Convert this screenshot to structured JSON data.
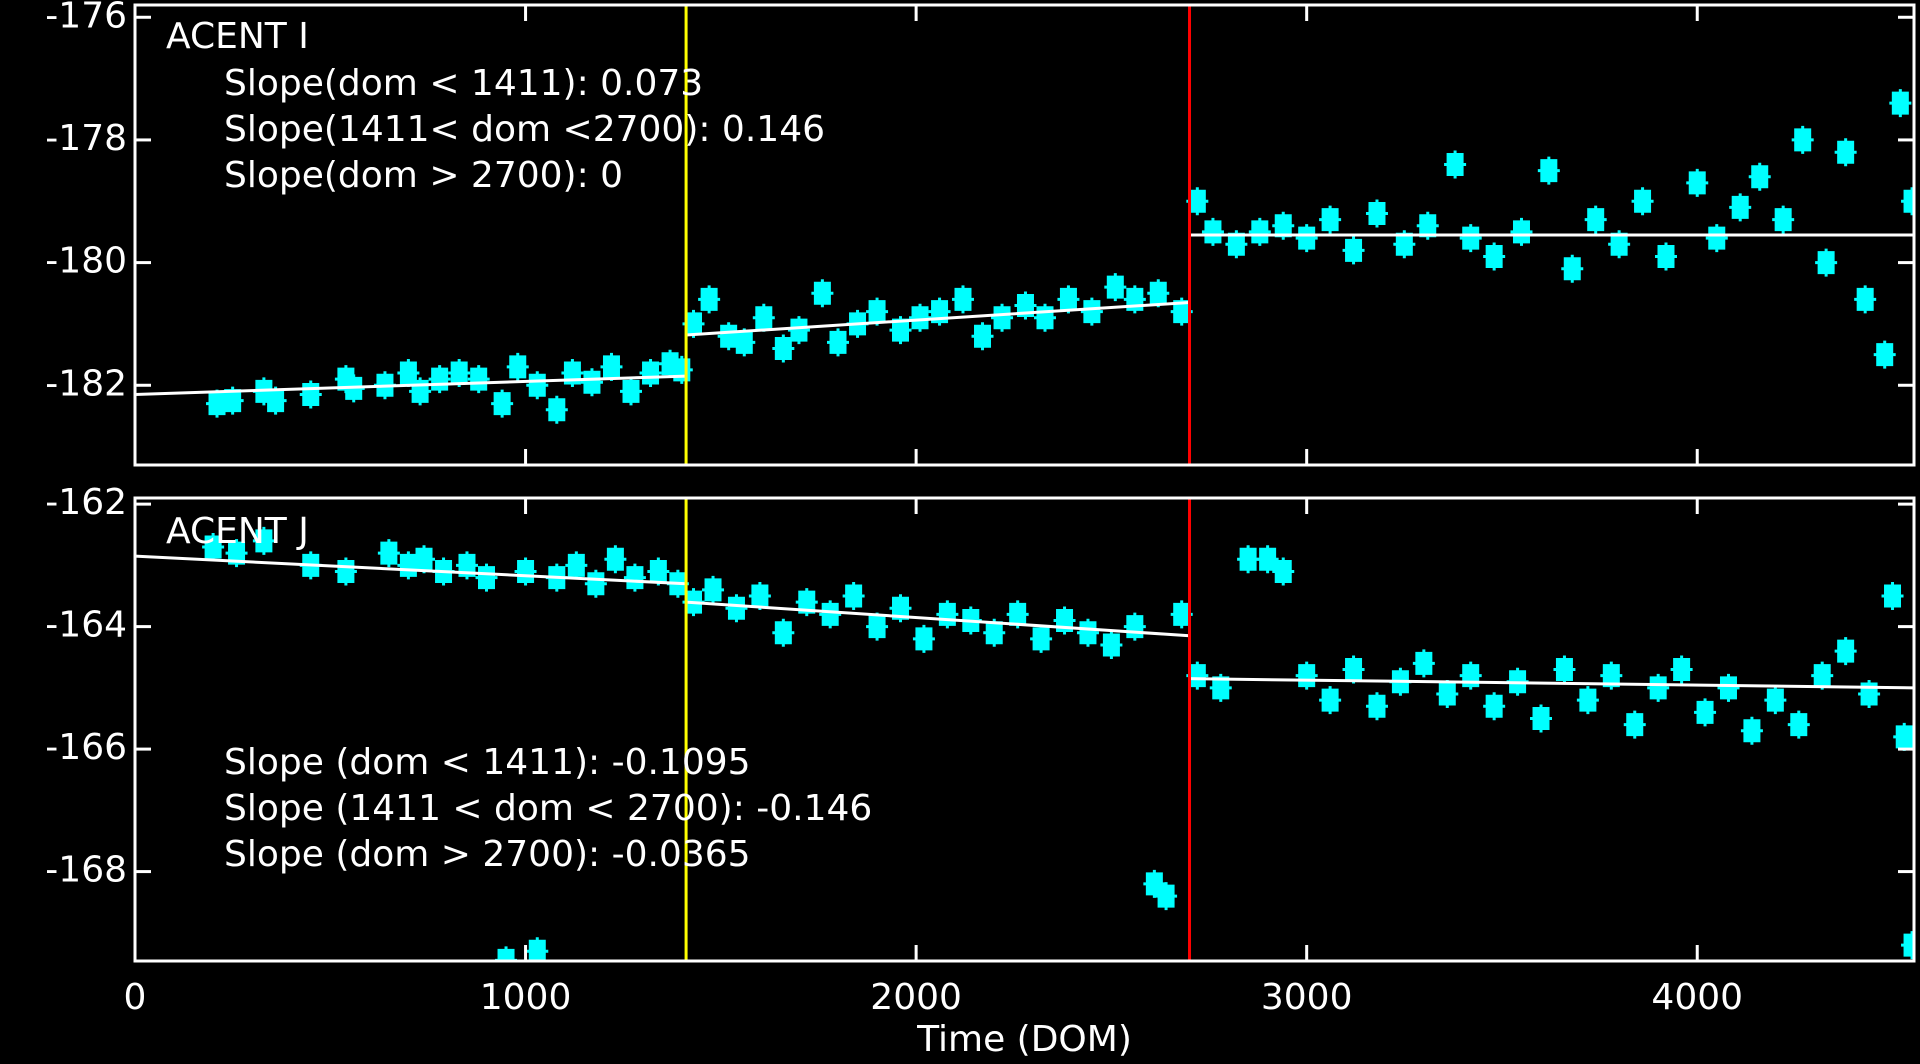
{
  "chart_data": [
    {
      "type": "scatter",
      "annotations": [
        "ACENT I",
        "Slope(dom < 1411): 0.073",
        "Slope(1411< dom <2700): 0.146",
        "Slope(dom > 2700): 0"
      ],
      "xlim": [
        0,
        4555
      ],
      "xticks": [
        0,
        1000,
        2000,
        3000,
        4000
      ],
      "show_xticklabels": false,
      "ylim": [
        -183.3,
        -175.8
      ],
      "yticks": [
        -182,
        -180,
        -178,
        -176
      ],
      "points": {
        "color": "#00ffff",
        "x": [
          210,
          250,
          330,
          360,
          450,
          540,
          560,
          640,
          700,
          730,
          780,
          830,
          880,
          940,
          980,
          1030,
          1080,
          1120,
          1170,
          1220,
          1270,
          1320,
          1370,
          1400,
          1430,
          1470,
          1520,
          1560,
          1610,
          1660,
          1700,
          1760,
          1800,
          1850,
          1900,
          1960,
          2010,
          2060,
          2120,
          2170,
          2220,
          2280,
          2330,
          2390,
          2450,
          2510,
          2560,
          2620,
          2680,
          2720,
          2760,
          2820,
          2880,
          2940,
          3000,
          3060,
          3120,
          3180,
          3250,
          3310,
          3380,
          3420,
          3480,
          3550,
          3620,
          3680,
          3740,
          3800,
          3860,
          3920,
          4000,
          4050,
          4110,
          4160,
          4220,
          4270,
          4330,
          4380,
          4430,
          4480,
          4520,
          4550
        ],
        "y": [
          -182.3,
          -182.25,
          -182.1,
          -182.25,
          -182.15,
          -181.9,
          -182.05,
          -182.0,
          -181.8,
          -182.1,
          -181.9,
          -181.8,
          -181.9,
          -182.3,
          -181.7,
          -182.0,
          -182.4,
          -181.8,
          -181.95,
          -181.7,
          -182.1,
          -181.8,
          -181.65,
          -181.75,
          -181.0,
          -180.6,
          -181.2,
          -181.3,
          -180.9,
          -181.4,
          -181.1,
          -180.5,
          -181.3,
          -181.0,
          -180.8,
          -181.1,
          -180.9,
          -180.8,
          -180.6,
          -181.2,
          -180.9,
          -180.7,
          -180.9,
          -180.6,
          -180.8,
          -180.4,
          -180.6,
          -180.5,
          -180.8,
          -179.0,
          -179.5,
          -179.7,
          -179.5,
          -179.4,
          -179.6,
          -179.3,
          -179.8,
          -179.2,
          -179.7,
          -179.4,
          -178.4,
          -179.6,
          -179.9,
          -179.5,
          -178.5,
          -180.1,
          -179.3,
          -179.7,
          -179.0,
          -179.9,
          -178.7,
          -179.6,
          -179.1,
          -178.6,
          -179.3,
          -178.0,
          -180.0,
          -178.2,
          -180.6,
          -181.5,
          -177.4,
          -179.0
        ]
      },
      "fits": [
        {
          "color": "#ffffff",
          "x": [
            0,
            1411
          ],
          "y": [
            -182.15,
            -181.85
          ]
        },
        {
          "color": "#ffffff",
          "x": [
            1411,
            2700
          ],
          "y": [
            -181.18,
            -180.65
          ]
        },
        {
          "color": "#ffffff",
          "x": [
            2700,
            4555
          ],
          "y": [
            -179.55,
            -179.55
          ]
        }
      ],
      "vlines": [
        {
          "x": 1411,
          "color": "#ffff00"
        },
        {
          "x": 2700,
          "color": "#ff0000"
        }
      ]
    },
    {
      "type": "scatter",
      "annotations": [
        "ACENT J",
        "Slope (dom < 1411): -0.1095",
        "Slope (1411 < dom < 2700): -0.146",
        "Slope (dom > 2700): -0.0365"
      ],
      "xlabel": "Time (DOM)",
      "xlim": [
        0,
        4555
      ],
      "xticks": [
        0,
        1000,
        2000,
        3000,
        4000
      ],
      "show_xticklabels": true,
      "ylim": [
        -169.46,
        -161.9
      ],
      "yticks": [
        -168,
        -166,
        -164,
        -162
      ],
      "points": {
        "color": "#00ffff",
        "x": [
          200,
          260,
          330,
          450,
          540,
          650,
          700,
          740,
          790,
          850,
          900,
          950,
          1000,
          1030,
          1080,
          1130,
          1180,
          1230,
          1280,
          1340,
          1390,
          1430,
          1480,
          1540,
          1600,
          1660,
          1720,
          1780,
          1840,
          1900,
          1960,
          2020,
          2080,
          2140,
          2200,
          2260,
          2320,
          2380,
          2440,
          2500,
          2560,
          2610,
          2640,
          2680,
          2720,
          2780,
          2850,
          2900,
          2940,
          3000,
          3060,
          3120,
          3180,
          3240,
          3300,
          3360,
          3420,
          3480,
          3540,
          3600,
          3660,
          3720,
          3780,
          3840,
          3900,
          3960,
          4020,
          4080,
          4140,
          4200,
          4260,
          4320,
          4380,
          4440,
          4500,
          4530,
          4550
        ],
        "y": [
          -162.7,
          -162.8,
          -162.6,
          -163.0,
          -163.1,
          -162.8,
          -163.0,
          -162.9,
          -163.1,
          -163.0,
          -163.2,
          -169.45,
          -163.1,
          -169.3,
          -163.2,
          -163.0,
          -163.3,
          -162.9,
          -163.2,
          -163.1,
          -163.3,
          -163.6,
          -163.4,
          -163.7,
          -163.5,
          -164.1,
          -163.6,
          -163.8,
          -163.5,
          -164.0,
          -163.7,
          -164.2,
          -163.8,
          -163.9,
          -164.1,
          -163.8,
          -164.2,
          -163.9,
          -164.1,
          -164.3,
          -164.0,
          -168.2,
          -168.4,
          -163.8,
          -164.8,
          -165.0,
          -162.9,
          -162.9,
          -163.1,
          -164.8,
          -165.2,
          -164.7,
          -165.3,
          -164.9,
          -164.6,
          -165.1,
          -164.8,
          -165.3,
          -164.9,
          -165.5,
          -164.7,
          -165.2,
          -164.8,
          -165.6,
          -165.0,
          -164.7,
          -165.4,
          -165.0,
          -165.7,
          -165.2,
          -165.6,
          -164.8,
          -164.4,
          -165.1,
          -163.5,
          -165.8,
          -169.2
        ]
      },
      "fits": [
        {
          "color": "#ffffff",
          "x": [
            0,
            1411
          ],
          "y": [
            -162.85,
            -163.3
          ]
        },
        {
          "color": "#ffffff",
          "x": [
            1411,
            2700
          ],
          "y": [
            -163.6,
            -164.15
          ]
        },
        {
          "color": "#ffffff",
          "x": [
            2700,
            4555
          ],
          "y": [
            -164.85,
            -165.0
          ]
        }
      ],
      "vlines": [
        {
          "x": 1411,
          "color": "#ffff00"
        },
        {
          "x": 2700,
          "color": "#ff0000"
        }
      ]
    }
  ]
}
